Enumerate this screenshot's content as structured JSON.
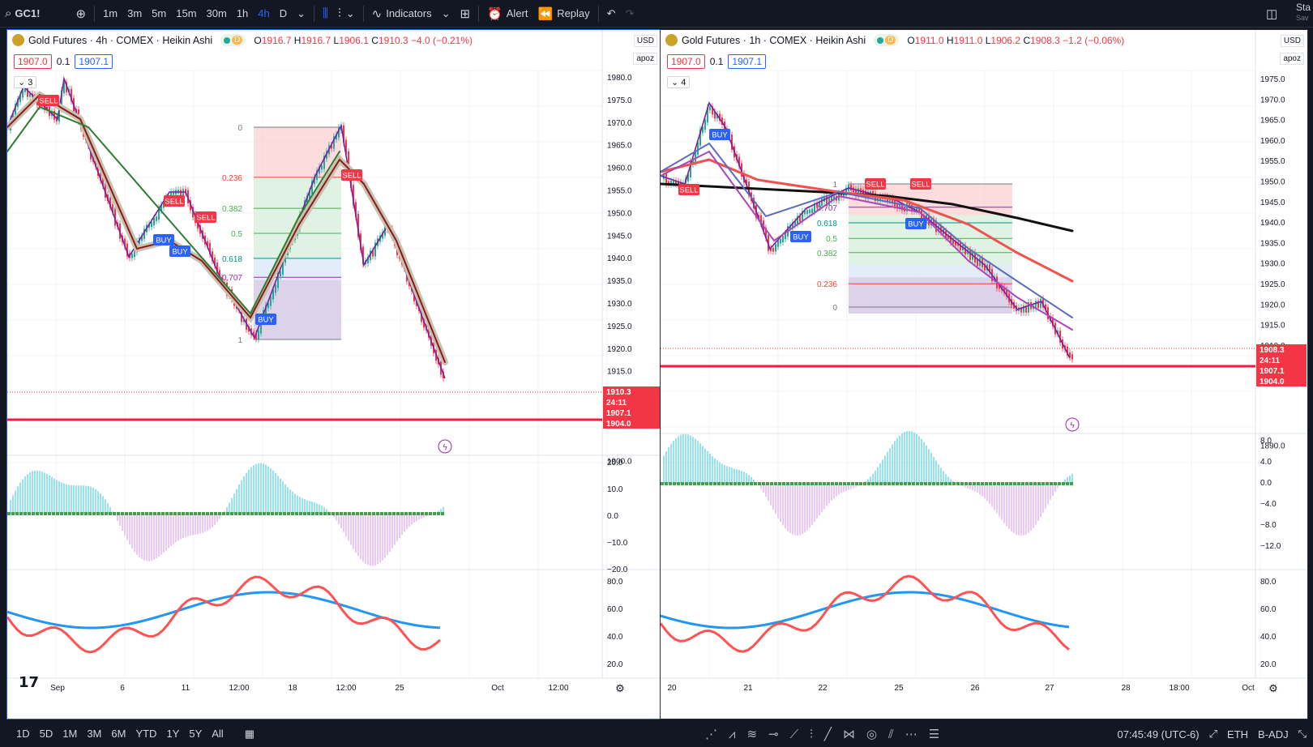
{
  "toolbar": {
    "symbol": "GC1!",
    "intervals": [
      "1m",
      "3m",
      "5m",
      "15m",
      "30m",
      "1h",
      "4h",
      "D"
    ],
    "active_interval": "4h",
    "indicators_label": "Indicators",
    "alert_label": "Alert",
    "replay_label": "Replay",
    "right_text": "Sta",
    "right_subtext": "Sav"
  },
  "left_chart": {
    "legend_title": "Gold Futures · 4h · COMEX · Heikin Ashi",
    "d_badge": "D",
    "ohlc": {
      "o_label": "O",
      "o": "1916.7",
      "h_label": "H",
      "h": "1916.7",
      "l_label": "L",
      "l": "1906.1",
      "c_label": "C",
      "c": "1910.3",
      "change": "−4.0 (−0.21%)"
    },
    "bid": "1907.0",
    "spread": "0.1",
    "ask": "1907.1",
    "collapse_count": "3",
    "currency": "USD",
    "axis_mode": "apoz",
    "price_ticks": [
      "1980.0",
      "1975.0",
      "1970.0",
      "1965.0",
      "1960.0",
      "1955.0",
      "1950.0",
      "1945.0",
      "1940.0",
      "1935.0",
      "1930.0",
      "1925.0",
      "1920.0",
      "1915.0",
      "1900.0"
    ],
    "osc_ticks": [
      "20.0",
      "10.0",
      "0.0",
      "−10.0",
      "−20.0"
    ],
    "rsi_ticks": [
      "80.0",
      "60.0",
      "40.0",
      "20.0"
    ],
    "time_labels": [
      "Sep",
      "6",
      "11",
      "12:00",
      "18",
      "12:00",
      "25",
      "Oct",
      "12:00"
    ],
    "fib_levels": [
      "0",
      "0.236",
      "0.382",
      "0.5",
      "0.618",
      "0.707",
      "1"
    ],
    "signals": [
      "SELL",
      "SELL",
      "SELL",
      "BUY",
      "BUY",
      "BUY",
      "SELL"
    ],
    "last_price_tags": [
      "1910.3",
      "24:11",
      "1907.1",
      "1904.0"
    ]
  },
  "right_chart": {
    "legend_title": "Gold Futures · 1h · COMEX · Heikin Ashi",
    "d_badge": "D",
    "ohlc": {
      "o_label": "O",
      "o": "1911.0",
      "h_label": "H",
      "h": "1911.0",
      "l_label": "L",
      "l": "1906.2",
      "c_label": "C",
      "c": "1908.3",
      "change": "−1.2 (−0.06%)"
    },
    "bid": "1907.0",
    "spread": "0.1",
    "ask": "1907.1",
    "collapse_count": "4",
    "currency": "USD",
    "axis_mode": "apoz",
    "price_ticks": [
      "1975.0",
      "1970.0",
      "1965.0",
      "1960.0",
      "1955.0",
      "1950.0",
      "1945.0",
      "1940.0",
      "1935.0",
      "1930.0",
      "1925.0",
      "1920.0",
      "1915.0",
      "1910.0",
      "1895.0",
      "1890.0"
    ],
    "osc_ticks": [
      "8.0",
      "4.0",
      "0.0",
      "−4.0",
      "−8.0",
      "−12.0"
    ],
    "rsi_ticks": [
      "80.0",
      "60.0",
      "40.0",
      "20.0"
    ],
    "time_labels": [
      "20",
      "21",
      "22",
      "25",
      "26",
      "27",
      "28",
      "18:00",
      "Oct"
    ],
    "fib_levels": [
      "1",
      "0.707",
      "0.618",
      "0.5",
      "0.382",
      "0.236",
      "0"
    ],
    "signals": [
      "SELL",
      "BUY",
      "BUY",
      "SELL",
      "SELL",
      "BUY"
    ],
    "last_price_tags": [
      "1908.3",
      "24:11",
      "1907.1",
      "1904.0"
    ]
  },
  "bottombar": {
    "ranges": [
      "1D",
      "5D",
      "1M",
      "3M",
      "6M",
      "YTD",
      "1Y",
      "5Y",
      "All"
    ],
    "clock": "07:45:49 (UTC-6)",
    "session": "ETH",
    "adjust": "B-ADJ"
  },
  "colors": {
    "accent": "#2962ff",
    "down": "#f23645",
    "up": "#26a69a",
    "purple": "#9c27b0"
  }
}
